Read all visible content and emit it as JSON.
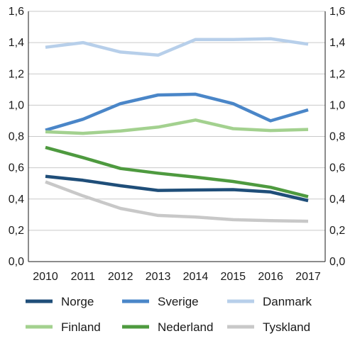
{
  "chart_data": {
    "type": "line",
    "title": "",
    "xlabel": "",
    "ylabel": "",
    "x": [
      "2010",
      "2011",
      "2012",
      "2013",
      "2014",
      "2015",
      "2016",
      "2017"
    ],
    "ylim": [
      0,
      1.6
    ],
    "yticks": [
      "0,0",
      "0,2",
      "0,4",
      "0,6",
      "0,8",
      "1,0",
      "1,2",
      "1,4",
      "1,6"
    ],
    "grid": "horizontal",
    "legend_position": "bottom",
    "series": [
      {
        "name": "Norge",
        "color": "#1f4e79",
        "values": [
          0.545,
          0.52,
          0.485,
          0.455,
          0.458,
          0.46,
          0.445,
          0.39
        ]
      },
      {
        "name": "Sverige",
        "color": "#4a86c8",
        "values": [
          0.84,
          0.91,
          1.01,
          1.065,
          1.07,
          1.01,
          0.9,
          0.97
        ]
      },
      {
        "name": "Danmark",
        "color": "#b7cfea",
        "values": [
          1.37,
          1.4,
          1.34,
          1.32,
          1.42,
          1.42,
          1.425,
          1.39
        ]
      },
      {
        "name": "Finland",
        "color": "#a3d18f",
        "values": [
          0.83,
          0.82,
          0.835,
          0.86,
          0.905,
          0.85,
          0.838,
          0.845
        ]
      },
      {
        "name": "Nederland",
        "color": "#4e9a3f",
        "values": [
          0.73,
          0.665,
          0.595,
          0.565,
          0.54,
          0.512,
          0.475,
          0.415
        ]
      },
      {
        "name": "Tyskland",
        "color": "#c8c8c8",
        "values": [
          0.51,
          0.42,
          0.34,
          0.295,
          0.285,
          0.268,
          0.262,
          0.258
        ]
      }
    ]
  }
}
